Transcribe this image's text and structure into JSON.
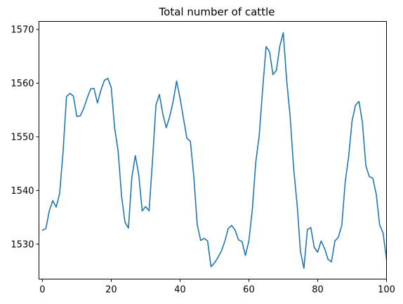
{
  "chart_data": {
    "type": "line",
    "title": "Total number of cattle",
    "xlabel": "",
    "ylabel": "",
    "xlim": [
      -1,
      100
    ],
    "ylim": [
      1523.5,
      1571.5
    ],
    "xticks": [
      0,
      20,
      40,
      60,
      80,
      100
    ],
    "yticks": [
      1530,
      1540,
      1550,
      1560,
      1570
    ],
    "grid": false,
    "legend": "none",
    "line_color": "#1f77b4",
    "series": [
      {
        "x": [
          0,
          1,
          2,
          3,
          4,
          5,
          6,
          7,
          8,
          9,
          10,
          11,
          12,
          13,
          14,
          15,
          16,
          17,
          18,
          19,
          20,
          21,
          22,
          23,
          24,
          25,
          26,
          27,
          28,
          29,
          30,
          31,
          32,
          33,
          34,
          35,
          36,
          37,
          38,
          39,
          40,
          41,
          42,
          43,
          44,
          45,
          46,
          47,
          48,
          49,
          50,
          51,
          52,
          53,
          54,
          55,
          56,
          57,
          58,
          59,
          60,
          61,
          62,
          63,
          64,
          65,
          66,
          67,
          68,
          69,
          70,
          71,
          72,
          73,
          74,
          75,
          76,
          77,
          78,
          79,
          80,
          81,
          82,
          83,
          84,
          85,
          86,
          87,
          88,
          89,
          90,
          91,
          92,
          93,
          94,
          95,
          96,
          97,
          98,
          99,
          100
        ],
        "y": [
          1532.6,
          1532.9,
          1536.2,
          1538.1,
          1536.9,
          1539.4,
          1547.2,
          1557.5,
          1558.1,
          1557.6,
          1553.8,
          1553.9,
          1555.3,
          1557.2,
          1558.9,
          1559.0,
          1556.3,
          1558.7,
          1560.5,
          1560.9,
          1559.2,
          1551.6,
          1547.4,
          1539.0,
          1534.1,
          1533.0,
          1542.5,
          1546.5,
          1542.9,
          1536.2,
          1537.0,
          1536.2,
          1545.6,
          1555.9,
          1557.9,
          1554.2,
          1551.7,
          1553.8,
          1556.6,
          1560.4,
          1557.2,
          1553.4,
          1549.7,
          1549.2,
          1542.6,
          1533.6,
          1530.7,
          1531.1,
          1530.6,
          1525.8,
          1526.5,
          1527.5,
          1528.7,
          1530.5,
          1532.9,
          1533.5,
          1532.6,
          1530.8,
          1530.5,
          1527.9,
          1530.6,
          1536.4,
          1545.2,
          1550.2,
          1558.8,
          1566.8,
          1565.9,
          1561.6,
          1562.4,
          1566.9,
          1569.4,
          1560.4,
          1553.8,
          1544.2,
          1537.6,
          1528.6,
          1525.5,
          1532.7,
          1533.1,
          1529.4,
          1528.5,
          1530.6,
          1529.2,
          1527.2,
          1526.7,
          1530.6,
          1531.3,
          1533.5,
          1541.6,
          1546.3,
          1553.0,
          1555.9,
          1556.6,
          1552.7,
          1544.6,
          1542.6,
          1542.3,
          1539.4,
          1533.6,
          1532.1,
          1527.2
        ]
      }
    ]
  }
}
